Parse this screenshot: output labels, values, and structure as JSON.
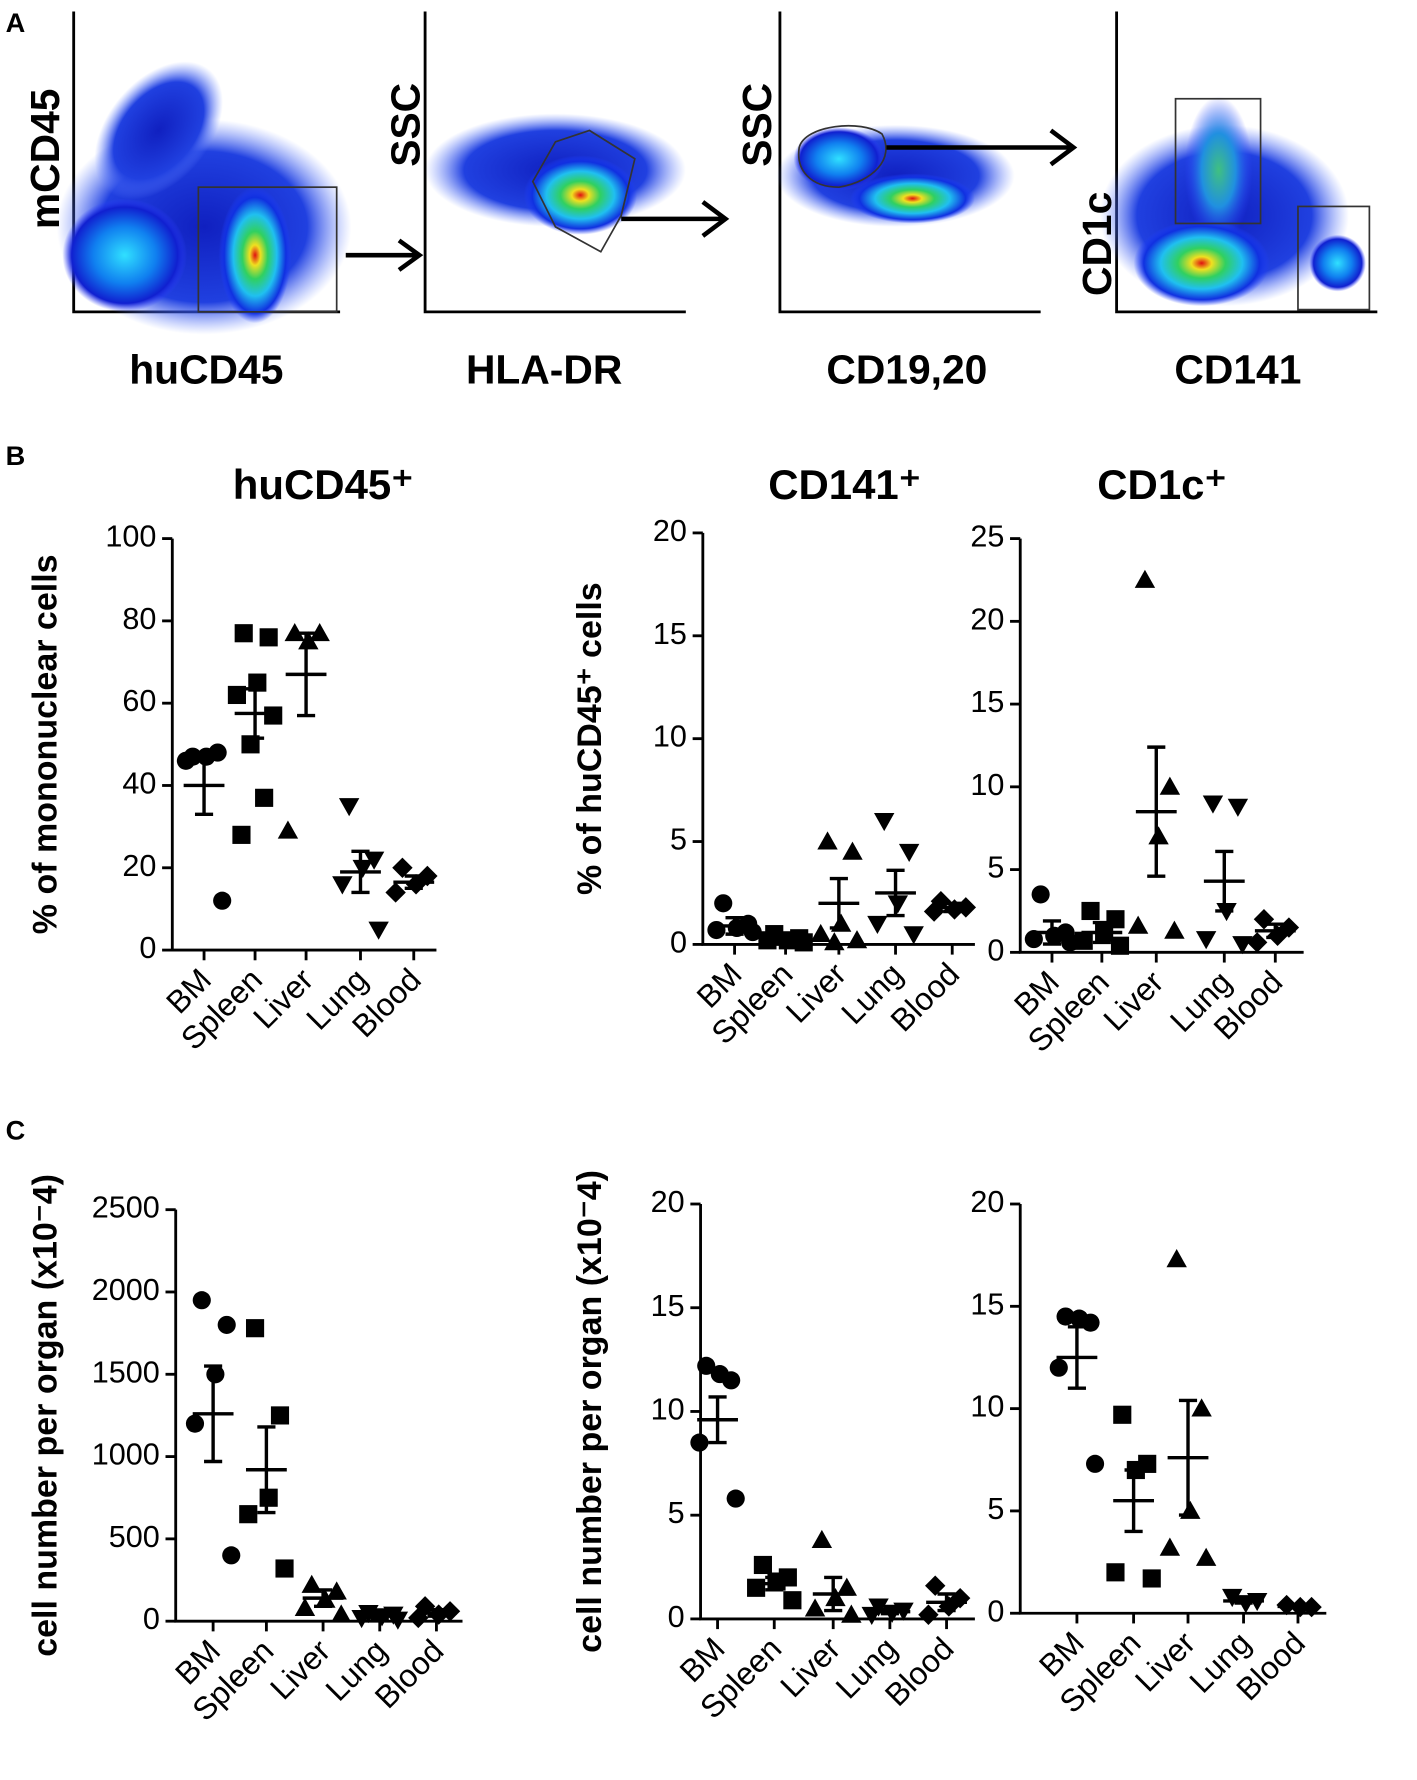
{
  "panel_a": {
    "label": "A",
    "plots": [
      {
        "xlabel": "huCD45",
        "ylabel": "mCD45"
      },
      {
        "xlabel": "HLA-DR",
        "ylabel": "SSC"
      },
      {
        "xlabel": "CD19,20",
        "ylabel": "SSC"
      },
      {
        "xlabel": "CD141",
        "ylabel": "CD1c"
      }
    ]
  },
  "panel_b_label": "B",
  "panel_c_label": "C",
  "chart_data": [
    {
      "type": "dot",
      "title": "huCD45⁺",
      "ylabel": "% of mononuclear cells",
      "categories": [
        "BM",
        "Spleen",
        "Liver",
        "Lung",
        "Blood"
      ],
      "markers": [
        "circle",
        "square",
        "triangle",
        "triangle-down",
        "diamond"
      ],
      "values": [
        [
          47,
          48,
          47,
          46,
          12
        ],
        [
          77,
          76,
          65,
          62,
          57,
          50,
          37,
          28
        ],
        [
          77,
          77,
          75,
          29
        ],
        [
          35,
          22,
          20,
          16,
          5
        ],
        [
          20,
          18,
          16,
          14
        ]
      ],
      "mean": [
        40,
        57.5,
        67,
        19,
        16.5
      ],
      "sem": [
        7,
        6,
        10,
        5,
        1.5
      ],
      "ylim": [
        0,
        100
      ],
      "yticks": [
        0,
        20,
        40,
        60,
        80,
        100
      ],
      "color": "#000000"
    },
    {
      "type": "dot",
      "title": "CD141⁺",
      "ylabel": "% of huCD45⁺ cells",
      "categories": [
        "BM",
        "Spleen",
        "Liver",
        "Lung",
        "Blood"
      ],
      "markers": [
        "circle",
        "square",
        "triangle",
        "triangle-down",
        "diamond"
      ],
      "values": [
        [
          2,
          1,
          0.8,
          0.7,
          0.6
        ],
        [
          0.5,
          0.3,
          0.2,
          0.2,
          0.1
        ],
        [
          5,
          4.5,
          1,
          0.5,
          0.2,
          0.1
        ],
        [
          6,
          4.5,
          2,
          1,
          0.5
        ],
        [
          2.1,
          1.8,
          1.7,
          1.6
        ]
      ],
      "mean": [
        0.9,
        0.3,
        2,
        2.5,
        1.8
      ],
      "sem": [
        0.4,
        0.2,
        1.2,
        1.1,
        0.2
      ],
      "ylim": [
        0,
        20
      ],
      "yticks": [
        0,
        5,
        10,
        15,
        20
      ],
      "color": "#000000"
    },
    {
      "type": "dot",
      "title": "CD1c⁺",
      "categories": [
        "BM",
        "Spleen",
        "Liver",
        "Lung",
        "Blood"
      ],
      "markers": [
        "circle",
        "square",
        "triangle",
        "triangle-down",
        "diamond"
      ],
      "values": [
        [
          3.5,
          1.2,
          1,
          0.8,
          0.6
        ],
        [
          2.5,
          2,
          1.2,
          0.7,
          0.4
        ],
        [
          22.5,
          10,
          7,
          1.6,
          1.3
        ],
        [
          9,
          8.8,
          2.5,
          0.8,
          0.5
        ],
        [
          2,
          1.5,
          1,
          0.6
        ]
      ],
      "mean": [
        1.2,
        1.2,
        8.5,
        4.3,
        1.3
      ],
      "sem": [
        0.7,
        0.6,
        3.9,
        1.8,
        0.4
      ],
      "ylim": [
        0,
        25
      ],
      "yticks": [
        0,
        5,
        10,
        15,
        20,
        25
      ],
      "color": "#000000"
    },
    {
      "type": "dot",
      "ylabel": "cell number per organ (x10⁻4)",
      "categories": [
        "BM",
        "Spleen",
        "Liver",
        "Lung",
        "Blood"
      ],
      "markers": [
        "circle",
        "square",
        "triangle",
        "triangle-down",
        "diamond"
      ],
      "values": [
        [
          1950,
          1800,
          1500,
          1200,
          400
        ],
        [
          1780,
          1250,
          750,
          650,
          320
        ],
        [
          220,
          180,
          130,
          80,
          40
        ],
        [
          50,
          40,
          30,
          20,
          10
        ],
        [
          90,
          60,
          40,
          20
        ]
      ],
      "mean": [
        1260,
        920,
        140,
        30,
        50
      ],
      "sem": [
        290,
        260,
        50,
        15,
        20
      ],
      "ylim": [
        0,
        2500
      ],
      "yticks": [
        0,
        500,
        1000,
        1500,
        2000,
        2500
      ],
      "color": "#000000"
    },
    {
      "type": "dot",
      "ylabel": "cell number per organ (x10⁻4)",
      "categories": [
        "BM",
        "Spleen",
        "Liver",
        "Lung",
        "Blood"
      ],
      "markers": [
        "circle",
        "square",
        "triangle",
        "triangle-down",
        "diamond"
      ],
      "values": [
        [
          12.2,
          11.5,
          11.8,
          8.5,
          5.8
        ],
        [
          2.6,
          2.0,
          1.8,
          1.5,
          0.9
        ],
        [
          3.8,
          1.5,
          1,
          0.5,
          0.2
        ],
        [
          0.6,
          0.4,
          0.3,
          0.2
        ],
        [
          1.6,
          1.0,
          0.6,
          0.2
        ]
      ],
      "mean": [
        9.6,
        1.7,
        1.2,
        0.35,
        0.8
      ],
      "sem": [
        1.1,
        0.3,
        0.8,
        0.1,
        0.4
      ],
      "ylim": [
        0,
        20
      ],
      "yticks": [
        0,
        5,
        10,
        15,
        20
      ],
      "color": "#000000"
    },
    {
      "type": "dot",
      "categories": [
        "BM",
        "Spleen",
        "Liver",
        "Lung",
        "Blood"
      ],
      "markers": [
        "circle",
        "square",
        "triangle",
        "triangle-down",
        "diamond"
      ],
      "values": [
        [
          14.5,
          14.2,
          14.4,
          12,
          7.3
        ],
        [
          9.7,
          7.3,
          7,
          2,
          1.7
        ],
        [
          17.3,
          10,
          5,
          3.2,
          2.7
        ],
        [
          0.8,
          0.6,
          0.5
        ],
        [
          0.4,
          0.3,
          0.3
        ]
      ],
      "mean": [
        12.5,
        5.5,
        7.6,
        0.6,
        0.33
      ],
      "sem": [
        1.5,
        1.5,
        2.8,
        0.1,
        0.05
      ],
      "ylim": [
        0,
        20
      ],
      "yticks": [
        0,
        5,
        10,
        15,
        20
      ],
      "color": "#000000"
    }
  ]
}
